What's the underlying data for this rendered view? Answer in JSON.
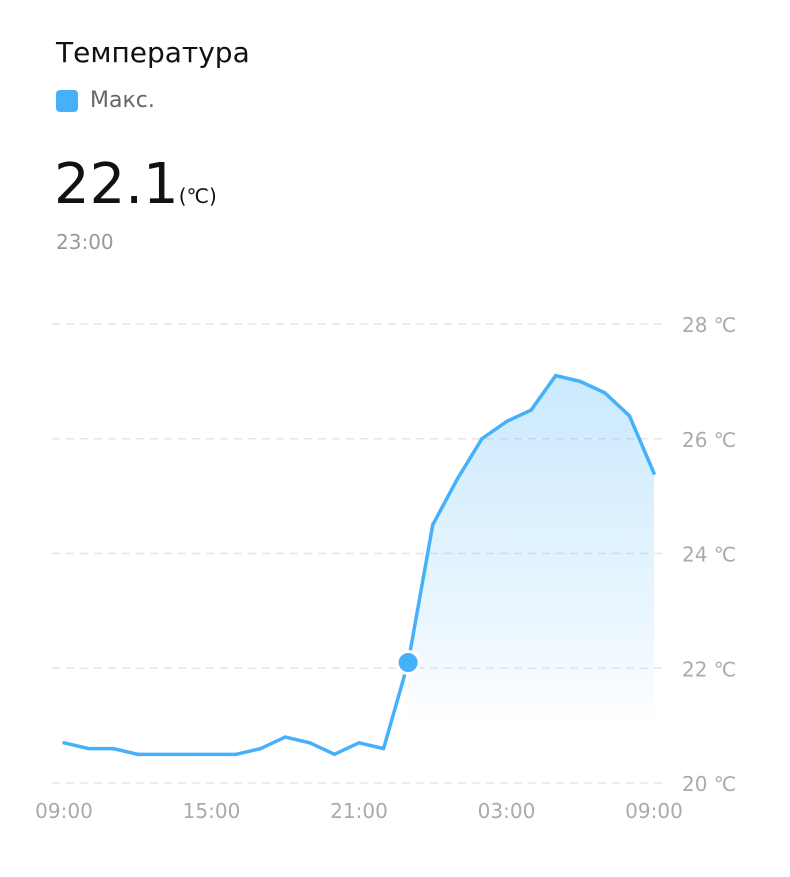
{
  "header": {
    "title": "Температура",
    "legend_label": "Макс.",
    "value": "22.1",
    "unit": "(℃)",
    "time": "23:00"
  },
  "colors": {
    "line": "#45b1fb",
    "grid": "#e6e6e6",
    "tick": "#aaaaaa"
  },
  "chart_data": {
    "type": "area",
    "series": [
      {
        "name": "Макс.",
        "values": [
          20.7,
          20.6,
          20.6,
          20.5,
          20.5,
          20.5,
          20.5,
          20.5,
          20.6,
          20.8,
          20.7,
          20.5,
          20.7,
          20.6,
          22.1,
          24.5,
          25.3,
          26.0,
          26.3,
          26.5,
          27.1,
          27.0,
          26.8,
          26.4,
          25.4
        ]
      }
    ],
    "x_ticks": [
      "09:00",
      "15:00",
      "21:00",
      "03:00",
      "09:00"
    ],
    "y_ticks": [
      "20 ℃",
      "22 ℃",
      "24 ℃",
      "26 ℃",
      "28 ℃"
    ],
    "y_tick_values": [
      20,
      22,
      24,
      26,
      28
    ],
    "ylim": [
      20,
      28
    ],
    "grid": true,
    "highlight": {
      "time": "23:00",
      "value": 22.1
    }
  }
}
